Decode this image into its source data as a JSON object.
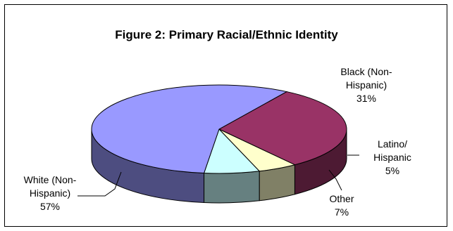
{
  "chart_data": {
    "type": "pie",
    "title": "Figure 2: Primary Racial/Ethnic Identity",
    "slices": [
      {
        "name_lines": [
          "Black (Non-",
          "Hispanic)"
        ],
        "value": 31,
        "value_label": "31%",
        "color": "#993366"
      },
      {
        "name_lines": [
          "Latino/",
          "Hispanic"
        ],
        "value": 5,
        "value_label": "5%",
        "color": "#FFFFCC"
      },
      {
        "name_lines": [
          "Other"
        ],
        "value": 7,
        "value_label": "7%",
        "color": "#CCFFFF"
      },
      {
        "name_lines": [
          "White (Non-",
          "Hispanic)"
        ],
        "value": 57,
        "value_label": "57%",
        "color": "#9999FF"
      }
    ],
    "style": "3d"
  }
}
